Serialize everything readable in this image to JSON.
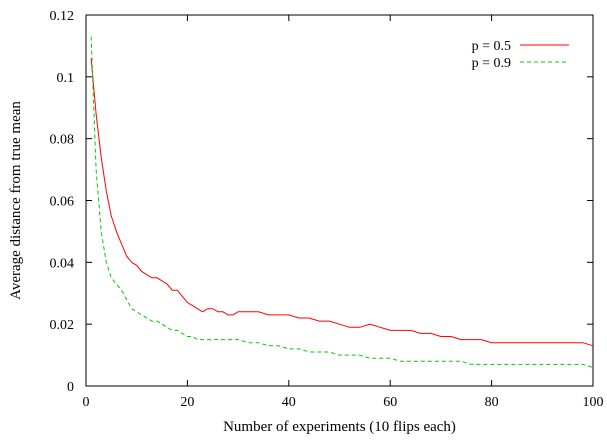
{
  "chart_data": {
    "type": "line",
    "title": "",
    "xlabel": "Number of experiments (10 flips each)",
    "ylabel": "Average distance from true mean",
    "xlim": [
      0,
      100
    ],
    "ylim": [
      0,
      0.12
    ],
    "xticks": [
      0,
      20,
      40,
      60,
      80,
      100
    ],
    "yticks": [
      0,
      0.02,
      0.04,
      0.06,
      0.08,
      0.1,
      0.12
    ],
    "xtick_labels": [
      "0",
      "20",
      "40",
      "60",
      "80",
      "100"
    ],
    "ytick_labels": [
      "0",
      "0.02",
      "0.04",
      "0.06",
      "0.08",
      "0.1",
      "0.12"
    ],
    "grid": false,
    "legend_position": "top-right",
    "series": [
      {
        "name": "p = 0.5",
        "color": "#ff0000",
        "dash": "solid",
        "x": [
          1,
          2,
          3,
          4,
          5,
          6,
          7,
          8,
          9,
          10,
          11,
          12,
          13,
          14,
          15,
          16,
          17,
          18,
          19,
          20,
          21,
          22,
          23,
          24,
          25,
          26,
          27,
          28,
          29,
          30,
          32,
          34,
          36,
          38,
          40,
          42,
          44,
          46,
          48,
          50,
          52,
          54,
          56,
          58,
          60,
          62,
          64,
          66,
          68,
          70,
          72,
          74,
          76,
          78,
          80,
          82,
          84,
          86,
          88,
          90,
          92,
          94,
          96,
          98,
          100
        ],
        "y": [
          0.106,
          0.088,
          0.074,
          0.063,
          0.055,
          0.05,
          0.046,
          0.042,
          0.04,
          0.039,
          0.037,
          0.036,
          0.035,
          0.035,
          0.034,
          0.033,
          0.031,
          0.031,
          0.029,
          0.027,
          0.026,
          0.025,
          0.024,
          0.025,
          0.025,
          0.024,
          0.024,
          0.023,
          0.023,
          0.024,
          0.024,
          0.024,
          0.023,
          0.023,
          0.023,
          0.022,
          0.022,
          0.021,
          0.021,
          0.02,
          0.019,
          0.019,
          0.02,
          0.019,
          0.018,
          0.018,
          0.018,
          0.017,
          0.017,
          0.016,
          0.016,
          0.015,
          0.015,
          0.015,
          0.014,
          0.014,
          0.014,
          0.014,
          0.014,
          0.014,
          0.014,
          0.014,
          0.014,
          0.014,
          0.013
        ]
      },
      {
        "name": "p = 0.9",
        "color": "#00cc00",
        "dash": "dashed",
        "x": [
          1,
          2,
          3,
          4,
          5,
          6,
          7,
          8,
          9,
          10,
          11,
          12,
          13,
          14,
          15,
          16,
          17,
          18,
          19,
          20,
          21,
          22,
          23,
          24,
          25,
          26,
          27,
          28,
          29,
          30,
          32,
          34,
          36,
          38,
          40,
          42,
          44,
          46,
          48,
          50,
          52,
          54,
          56,
          58,
          60,
          62,
          64,
          66,
          68,
          70,
          72,
          74,
          76,
          78,
          80,
          82,
          84,
          86,
          88,
          90,
          92,
          94,
          96,
          98,
          100
        ],
        "y": [
          0.113,
          0.07,
          0.05,
          0.04,
          0.035,
          0.033,
          0.031,
          0.028,
          0.025,
          0.024,
          0.023,
          0.022,
          0.021,
          0.021,
          0.02,
          0.019,
          0.018,
          0.018,
          0.017,
          0.016,
          0.016,
          0.015,
          0.015,
          0.015,
          0.015,
          0.015,
          0.015,
          0.015,
          0.015,
          0.015,
          0.014,
          0.014,
          0.013,
          0.013,
          0.012,
          0.012,
          0.011,
          0.011,
          0.011,
          0.01,
          0.01,
          0.01,
          0.009,
          0.009,
          0.009,
          0.008,
          0.008,
          0.008,
          0.008,
          0.008,
          0.008,
          0.008,
          0.007,
          0.007,
          0.007,
          0.007,
          0.007,
          0.007,
          0.007,
          0.007,
          0.007,
          0.007,
          0.007,
          0.007,
          0.006
        ]
      }
    ]
  }
}
